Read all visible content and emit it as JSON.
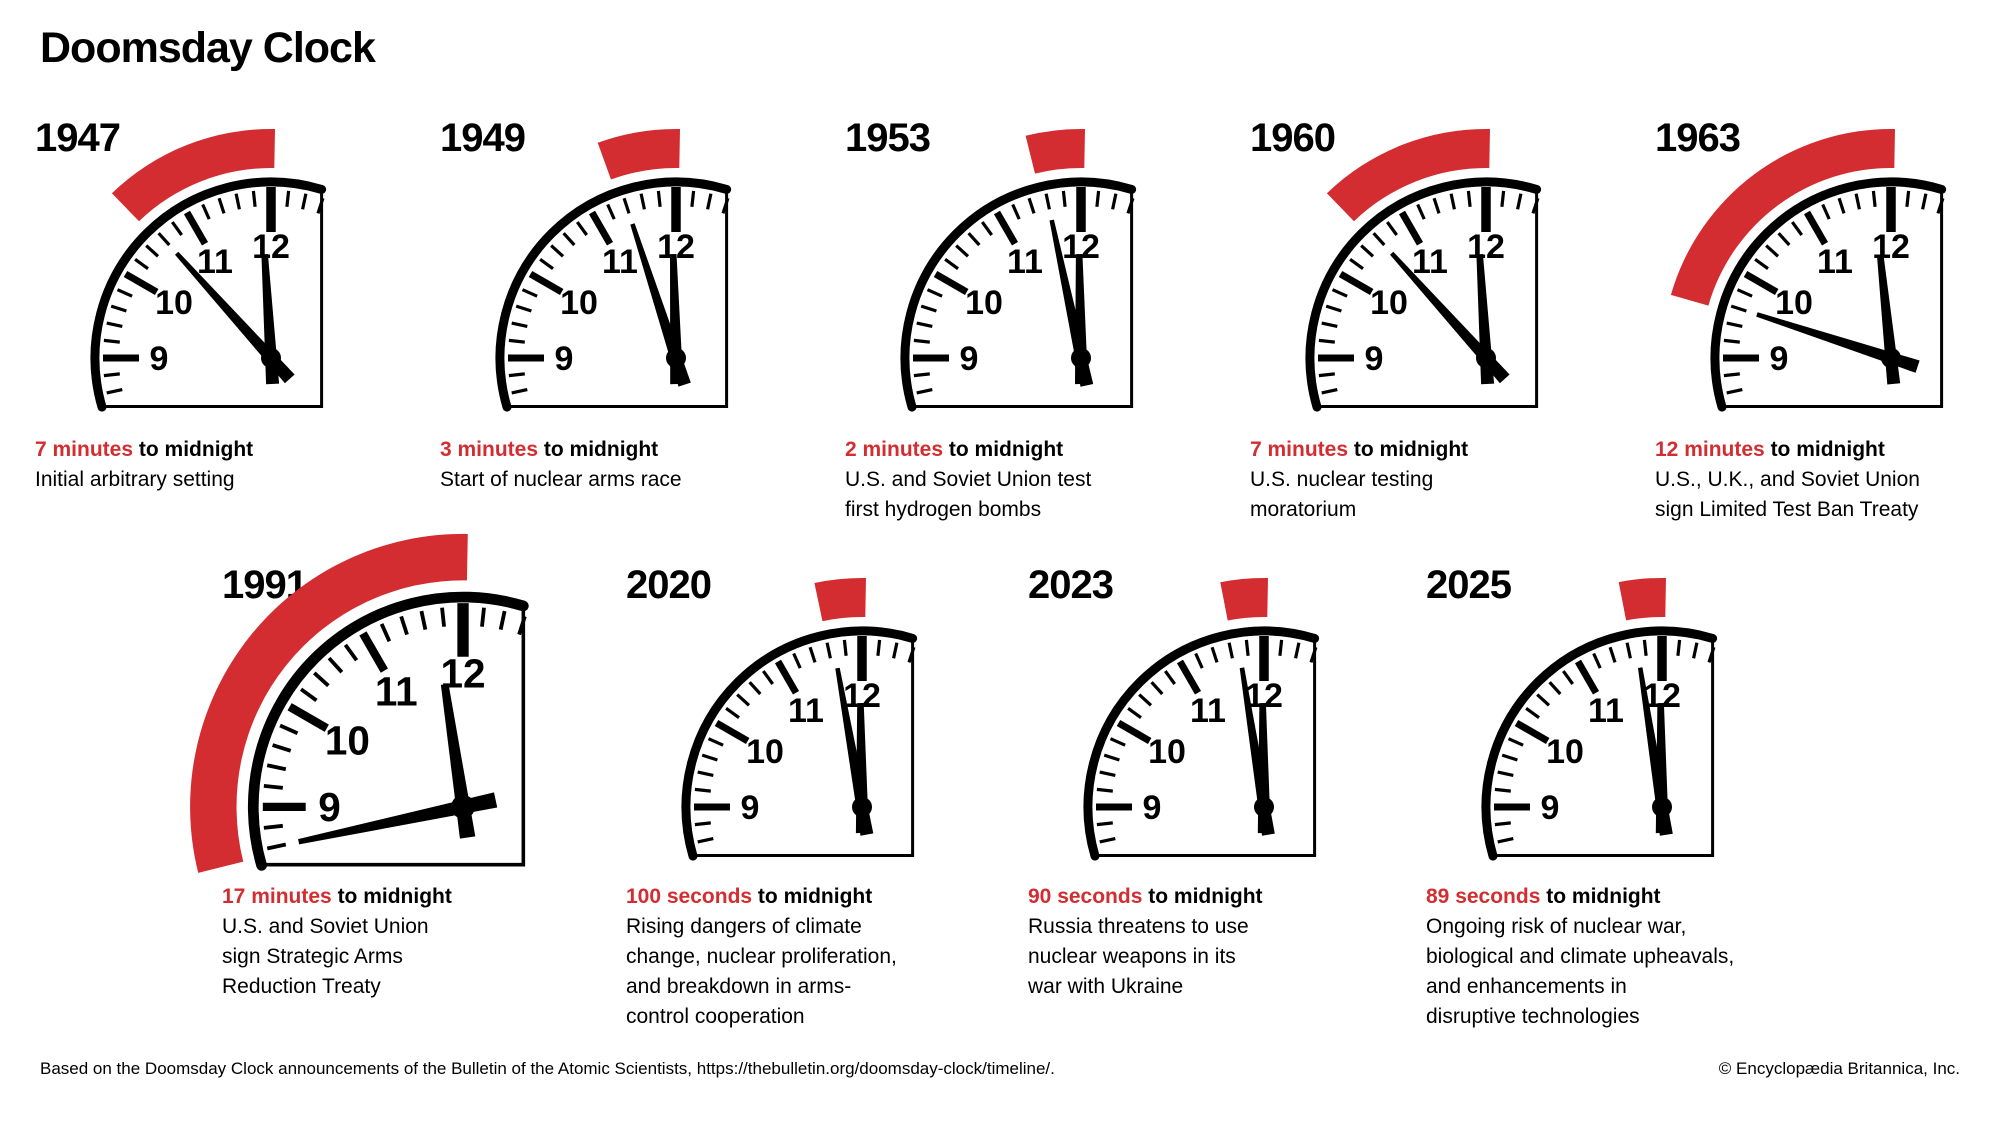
{
  "title": "Doomsday Clock",
  "accent_color": "#d32d31",
  "headline_suffix": "to midnight",
  "clocks": [
    {
      "year": "1947",
      "time": "7 minutes",
      "minutes_to_midnight": 7,
      "description": "Initial arbitrary setting"
    },
    {
      "year": "1949",
      "time": "3 minutes",
      "minutes_to_midnight": 3,
      "description": "Start of nuclear arms race"
    },
    {
      "year": "1953",
      "time": "2 minutes",
      "minutes_to_midnight": 2,
      "description": "U.S. and Soviet Union test\nfirst hydrogen bombs"
    },
    {
      "year": "1960",
      "time": "7 minutes",
      "minutes_to_midnight": 7,
      "description": "U.S. nuclear testing\nmoratorium"
    },
    {
      "year": "1963",
      "time": "12 minutes",
      "minutes_to_midnight": 12,
      "description": "U.S., U.K., and Soviet Union\nsign Limited Test Ban Treaty"
    },
    {
      "year": "1991",
      "time": "17 minutes",
      "minutes_to_midnight": 17,
      "description": "U.S. and Soviet Union\nsign Strategic Arms\nReduction Treaty"
    },
    {
      "year": "2020",
      "time": "100 seconds",
      "minutes_to_midnight": 1.6667,
      "description": "Rising dangers of climate\nchange, nuclear proliferation,\nand breakdown in arms-\ncontrol cooperation"
    },
    {
      "year": "2023",
      "time": "90 seconds",
      "minutes_to_midnight": 1.5,
      "description": "Russia threatens to use\nnuclear weapons in its\nwar with Ukraine"
    },
    {
      "year": "2025",
      "time": "89 seconds",
      "minutes_to_midnight": 1.4833,
      "description": "Ongoing risk of nuclear war,\nbiological and climate upheavals,\nand enhancements in\ndisruptive technologies"
    }
  ],
  "clock_dial_numbers": [
    "12",
    "11",
    "10",
    "9"
  ],
  "footer": {
    "source": "Based on the Doomsday Clock announcements of the Bulletin of the Atomic Scientists, https://thebulletin.org/doomsday-clock/timeline/.",
    "copyright": "© Encyclopædia Britannica, Inc."
  }
}
